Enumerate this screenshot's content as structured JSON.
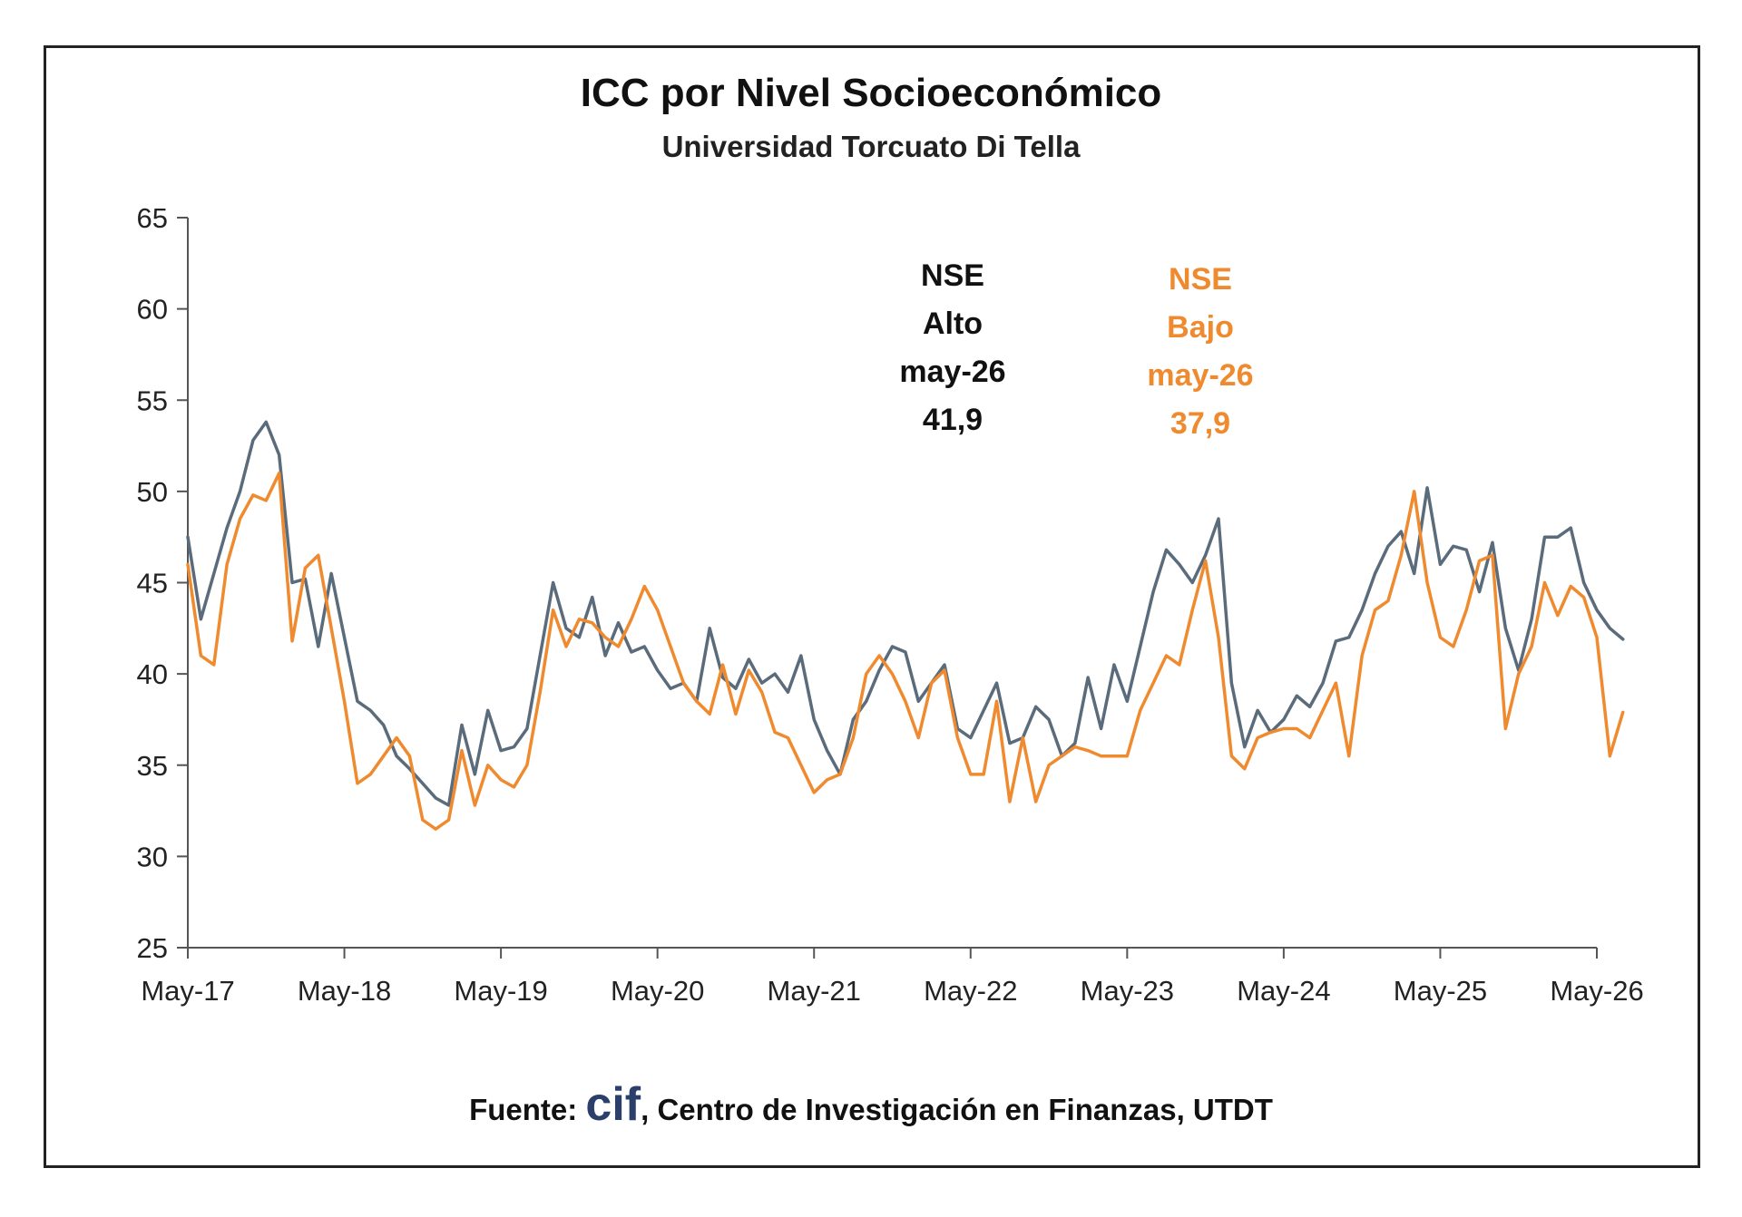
{
  "chart_data": {
    "type": "line",
    "title": "ICC por Nivel Socioeconómico",
    "subtitle": "Universidad Torcuato Di Tella",
    "xlabel": "",
    "ylabel": "",
    "ylim": [
      25,
      65
    ],
    "y_ticks": [
      "65",
      "60",
      "55",
      "50",
      "45",
      "40",
      "35",
      "30",
      "25"
    ],
    "x_range": [
      0,
      108
    ],
    "x_ticks": [
      {
        "x": 0,
        "label": "May-17"
      },
      {
        "x": 12,
        "label": "May-18"
      },
      {
        "x": 24,
        "label": "May-19"
      },
      {
        "x": 36,
        "label": "May-20"
      },
      {
        "x": 48,
        "label": "May-21"
      },
      {
        "x": 60,
        "label": "May-22"
      },
      {
        "x": 72,
        "label": "May-23"
      },
      {
        "x": 84,
        "label": "May-24"
      },
      {
        "x": 96,
        "label": "May-25"
      },
      {
        "x": 108,
        "label": "May-26"
      }
    ],
    "grid": false,
    "legend": "none",
    "series": [
      {
        "name": "NSE Alto",
        "color": "#5a6b7b",
        "values": [
          47.5,
          43.0,
          45.5,
          48.0,
          50.0,
          52.8,
          53.8,
          52.0,
          45.0,
          45.2,
          41.5,
          45.5,
          42.0,
          38.5,
          38.0,
          37.2,
          35.5,
          34.8,
          34.0,
          33.2,
          32.8,
          37.2,
          34.5,
          38.0,
          35.8,
          36.0,
          37.0,
          41.0,
          45.0,
          42.5,
          42.0,
          44.2,
          41.0,
          42.8,
          41.2,
          41.5,
          40.2,
          39.2,
          39.5,
          38.5,
          42.5,
          39.8,
          39.2,
          40.8,
          39.5,
          40.0,
          39.0,
          41.0,
          37.5,
          35.8,
          34.5,
          37.5,
          38.5,
          40.2,
          41.5,
          41.2,
          38.5,
          39.5,
          40.5,
          37.0,
          36.5,
          38.0,
          39.5,
          36.2,
          36.5,
          38.2,
          37.5,
          35.5,
          36.2,
          39.8,
          37.0,
          40.5,
          38.5,
          41.5,
          44.5,
          46.8,
          46.0,
          45.0,
          46.5,
          48.5,
          39.5,
          36.0,
          38.0,
          36.8,
          37.5,
          38.8,
          38.2,
          39.5,
          41.8,
          42.0,
          43.5,
          45.5,
          47.0,
          47.8,
          45.5,
          50.2,
          46.0,
          47.0,
          46.8,
          44.5,
          47.2,
          42.5,
          40.2,
          43.0,
          47.5,
          47.5,
          48.0,
          45.0,
          43.5,
          42.5,
          41.9
        ]
      },
      {
        "name": "NSE Bajo",
        "color": "#ef8a2f",
        "values": [
          46.0,
          41.0,
          40.5,
          46.0,
          48.5,
          49.8,
          49.5,
          51.0,
          41.8,
          45.8,
          46.5,
          42.5,
          38.5,
          34.0,
          34.5,
          35.5,
          36.5,
          35.5,
          32.0,
          31.5,
          32.0,
          35.8,
          32.8,
          35.0,
          34.2,
          33.8,
          35.0,
          39.0,
          43.5,
          41.5,
          43.0,
          42.8,
          42.0,
          41.5,
          43.0,
          44.8,
          43.5,
          41.5,
          39.5,
          38.5,
          37.8,
          40.5,
          37.8,
          40.2,
          39.0,
          36.8,
          36.5,
          35.0,
          33.5,
          34.2,
          34.5,
          36.5,
          40.0,
          41.0,
          40.0,
          38.5,
          36.5,
          39.5,
          40.2,
          36.5,
          34.5,
          34.5,
          38.5,
          33.0,
          36.5,
          33.0,
          35.0,
          35.5,
          36.0,
          35.8,
          35.5,
          35.5,
          35.5,
          38.0,
          39.5,
          41.0,
          40.5,
          43.5,
          46.2,
          42.0,
          35.5,
          34.8,
          36.5,
          36.8,
          37.0,
          37.0,
          36.5,
          38.0,
          39.5,
          35.5,
          41.0,
          43.5,
          44.0,
          46.5,
          50.0,
          45.0,
          42.0,
          41.5,
          43.5,
          46.2,
          46.5,
          37.0,
          40.0,
          41.5,
          45.0,
          43.2,
          44.8,
          44.2,
          42.0,
          35.5,
          37.9
        ]
      }
    ],
    "annotations": {
      "alto": [
        "NSE",
        "Alto",
        "may-26",
        "41,9"
      ],
      "bajo": [
        "NSE",
        "Bajo",
        "may-26",
        "37,9"
      ]
    }
  },
  "footer": {
    "prefix": "Fuente: ",
    "logo_text": "cif",
    "suffix": ", Centro de Investigación en Finanzas, UTDT"
  }
}
